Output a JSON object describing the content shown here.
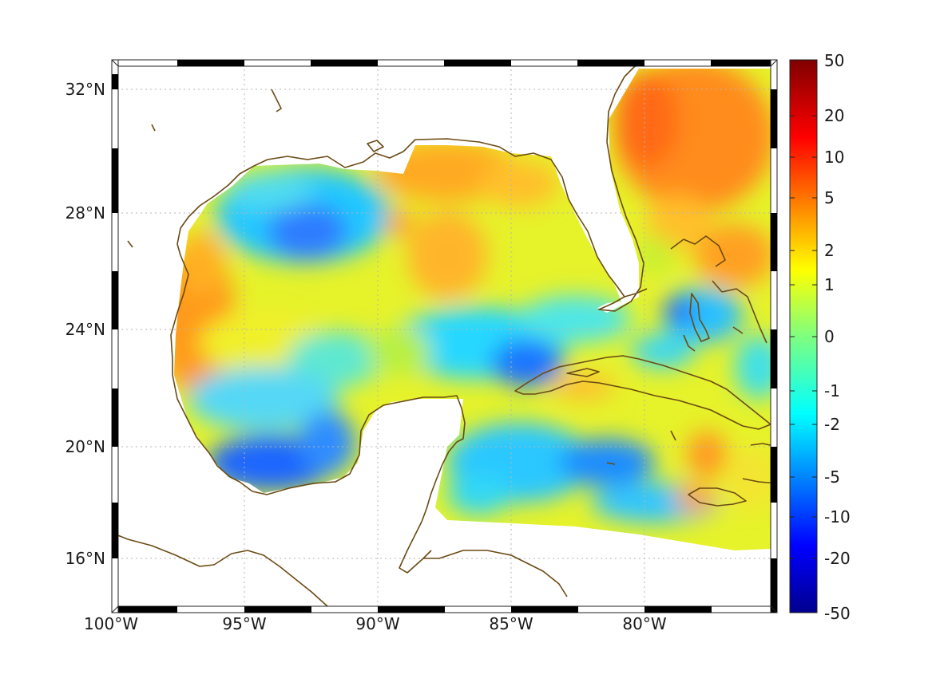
{
  "map": {
    "lon_range": [
      -100,
      -75
    ],
    "lat_range": [
      14,
      33
    ],
    "lon_ticks": [
      {
        "value": -100,
        "label": "100°W"
      },
      {
        "value": -95,
        "label": "95°W"
      },
      {
        "value": -90,
        "label": "90°W"
      },
      {
        "value": -85,
        "label": "85°W"
      },
      {
        "value": -80,
        "label": "80°W"
      }
    ],
    "lat_ticks": [
      {
        "value": 32,
        "label": "32°N"
      },
      {
        "value": 28,
        "label": "28°N"
      },
      {
        "value": 24,
        "label": "24°N"
      },
      {
        "value": 20,
        "label": "20°N"
      },
      {
        "value": 16,
        "label": "16°N"
      }
    ],
    "grid": true,
    "coastline_color": "#6b4a14",
    "colorbar": {
      "colormap": "jet",
      "ticks": [
        {
          "value": 50,
          "label": "50"
        },
        {
          "value": 20,
          "label": "20"
        },
        {
          "value": 10,
          "label": "10"
        },
        {
          "value": 5,
          "label": "5"
        },
        {
          "value": 2,
          "label": "2"
        },
        {
          "value": 1,
          "label": "1"
        },
        {
          "value": 0,
          "label": "0"
        },
        {
          "value": -1,
          "label": "-1"
        },
        {
          "value": -2,
          "label": "-2"
        },
        {
          "value": -5,
          "label": "-5"
        },
        {
          "value": -10,
          "label": "-10"
        },
        {
          "value": -20,
          "label": "-20"
        },
        {
          "value": -50,
          "label": "-50"
        }
      ]
    }
  }
}
